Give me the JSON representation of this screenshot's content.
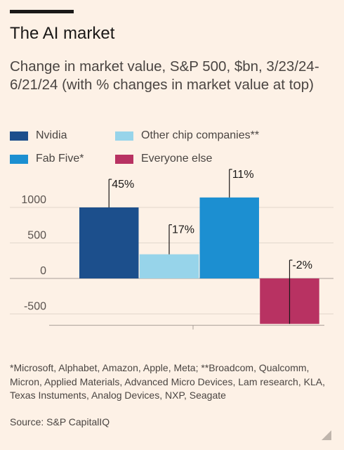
{
  "header": {
    "headline": "The AI market",
    "subtitle": "Change in market value, S&P 500, $bn, 3/23/24-6/21/24 (with % changes in market value at top)"
  },
  "footer": {
    "footnote": "*Microsoft, Alphabet, Amazon, Apple, Meta; **Broadcom, Qualcomm, Micron, Applied Materials, Advanced Micro Devices, Lam research, KLA, Texas Instuments, Analog Devices, NXP, Seagate",
    "source": "Source: S&P CapitalIQ"
  },
  "chart_data": {
    "type": "bar",
    "categories": [
      "Nvidia",
      "Other chip companies**",
      "Fab Five*",
      "Everyone else"
    ],
    "values": [
      1000,
      340,
      1140,
      -640
    ],
    "pct_labels": [
      "45%",
      "17%",
      "11%",
      "-2%"
    ],
    "colors": [
      "#1c4f8c",
      "#97d4ea",
      "#1c8fd1",
      "#b83262"
    ],
    "legend": [
      {
        "label": "Nvidia",
        "color": "#1c4f8c"
      },
      {
        "label": "Other chip companies**",
        "color": "#97d4ea"
      },
      {
        "label": "Fab Five*",
        "color": "#1c8fd1"
      },
      {
        "label": "Everyone else",
        "color": "#b83262"
      }
    ],
    "yticks": [
      1000,
      500,
      0,
      -500
    ],
    "ylim": [
      -640,
      1250
    ],
    "grid": true,
    "legend_position": "top-left"
  }
}
